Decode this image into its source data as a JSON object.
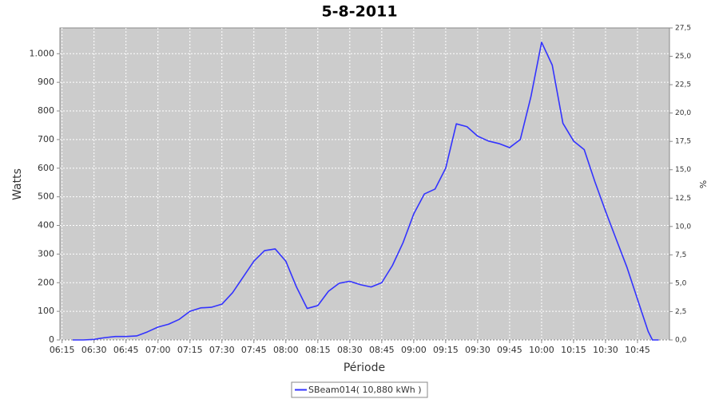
{
  "chart_data": {
    "type": "line",
    "title": "5-8-2011",
    "x_label": "Période",
    "y_label": "Watts",
    "y2_label": "%",
    "x": [
      "06:20",
      "06:25",
      "06:30",
      "06:35",
      "06:40",
      "06:45",
      "06:50",
      "06:55",
      "07:00",
      "07:05",
      "07:10",
      "07:15",
      "07:20",
      "07:25",
      "07:30",
      "07:35",
      "07:40",
      "07:45",
      "07:50",
      "07:55",
      "08:00",
      "08:05",
      "08:10",
      "08:15",
      "08:20",
      "08:25",
      "08:30",
      "08:35",
      "08:40",
      "08:45",
      "08:50",
      "08:55",
      "09:00",
      "09:05",
      "09:10",
      "09:15",
      "09:20",
      "09:25",
      "09:30",
      "09:35",
      "09:40",
      "09:45",
      "09:50",
      "09:55",
      "10:00",
      "10:05",
      "10:10",
      "10:15",
      "10:20",
      "10:25",
      "10:30",
      "10:35",
      "10:40",
      "10:45",
      "10:50",
      "10:52",
      "10:55"
    ],
    "series": [
      {
        "name": "SBeam014( 10,880 kWh )",
        "color": "#3333ff",
        "values": [
          0,
          0,
          2,
          8,
          12,
          12,
          14,
          28,
          45,
          55,
          72,
          100,
          112,
          114,
          125,
          165,
          220,
          275,
          312,
          318,
          275,
          185,
          110,
          120,
          170,
          198,
          205,
          193,
          185,
          200,
          260,
          340,
          440,
          510,
          527,
          600,
          755,
          745,
          712,
          695,
          686,
          672,
          700,
          850,
          1040,
          960,
          757,
          695,
          665,
          553,
          450,
          352,
          255,
          142,
          30,
          0,
          0
        ]
      }
    ],
    "xlim": [
      "06:14",
      "11:00"
    ],
    "xticks": [
      "06:15",
      "06:30",
      "06:45",
      "07:00",
      "07:15",
      "07:30",
      "07:45",
      "08:00",
      "08:15",
      "08:30",
      "08:45",
      "09:00",
      "09:15",
      "09:30",
      "09:45",
      "10:00",
      "10:15",
      "10:30",
      "10:45"
    ],
    "ylim": [
      0,
      1090
    ],
    "yticks": [
      0,
      100,
      200,
      300,
      400,
      500,
      600,
      700,
      800,
      900,
      {
        "value": 1000,
        "label": "1.000"
      }
    ],
    "y2lim": [
      0,
      27.5
    ],
    "y2ticks": [
      {
        "value": 0,
        "label": "0,0"
      },
      {
        "value": 2.5,
        "label": "2,5"
      },
      {
        "value": 5,
        "label": "5,0"
      },
      {
        "value": 7.5,
        "label": "7,5"
      },
      {
        "value": 10,
        "label": "10,0"
      },
      {
        "value": 12.5,
        "label": "12,5"
      },
      {
        "value": 15,
        "label": "15,0"
      },
      {
        "value": 17.5,
        "label": "17,5"
      },
      {
        "value": 20,
        "label": "20,0"
      },
      {
        "value": 22.5,
        "label": "22,5"
      },
      {
        "value": 25,
        "label": "25,0"
      },
      {
        "value": 27.5,
        "label": "27,5"
      }
    ],
    "grid": true,
    "legend": "bottom"
  }
}
